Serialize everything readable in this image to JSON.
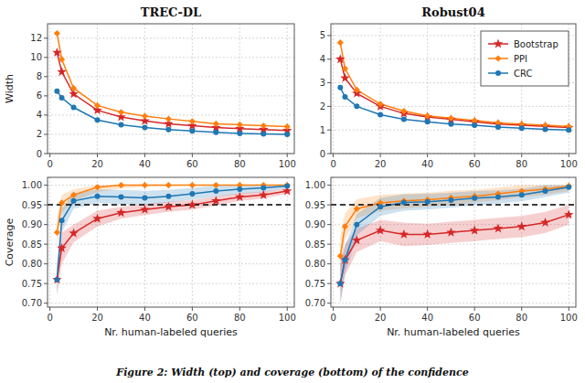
{
  "caption": "Figure 2: Width (top) and coverage (bottom) of the confidence",
  "chart_data": [
    {
      "type": "line",
      "title": "TREC-DL",
      "y_label": "Width",
      "x": [
        3,
        5,
        10,
        20,
        30,
        40,
        50,
        60,
        70,
        80,
        90,
        100
      ],
      "xlim": [
        -1,
        103
      ],
      "xticks": [
        0,
        20,
        40,
        60,
        80,
        100
      ],
      "ylim": [
        0,
        13.5
      ],
      "yticks": [
        0,
        2,
        4,
        6,
        8,
        10,
        12
      ],
      "grid": true,
      "series": [
        {
          "color": "#d62728",
          "marker": "star",
          "values": [
            10.5,
            8.5,
            6.2,
            4.5,
            3.8,
            3.4,
            3.1,
            2.9,
            2.7,
            2.6,
            2.5,
            2.4
          ]
        },
        {
          "color": "#ff7f0e",
          "marker": "diamond",
          "values": [
            12.5,
            9.8,
            6.8,
            5.0,
            4.3,
            3.9,
            3.6,
            3.35,
            3.1,
            3.0,
            2.9,
            2.8
          ]
        },
        {
          "color": "#1f77b4",
          "marker": "circle",
          "values": [
            6.5,
            5.8,
            4.8,
            3.5,
            3.0,
            2.7,
            2.5,
            2.35,
            2.2,
            2.1,
            2.05,
            2.0
          ]
        }
      ]
    },
    {
      "type": "line",
      "title": "Robust04",
      "legend": "upper right",
      "x": [
        3,
        5,
        10,
        20,
        30,
        40,
        50,
        60,
        70,
        80,
        90,
        100
      ],
      "xlim": [
        -1,
        103
      ],
      "xticks": [
        0,
        20,
        40,
        60,
        80,
        100
      ],
      "ylim": [
        0,
        5.5
      ],
      "yticks": [
        0,
        1,
        2,
        3,
        4,
        5
      ],
      "grid": true,
      "series": [
        {
          "name": "Bootstrap",
          "color": "#d62728",
          "marker": "star",
          "values": [
            4.0,
            3.2,
            2.55,
            2.0,
            1.7,
            1.55,
            1.45,
            1.35,
            1.25,
            1.2,
            1.15,
            1.1
          ]
        },
        {
          "name": "PPI",
          "color": "#ff7f0e",
          "marker": "diamond",
          "values": [
            4.7,
            3.6,
            2.7,
            2.1,
            1.8,
            1.6,
            1.5,
            1.4,
            1.3,
            1.25,
            1.2,
            1.15
          ]
        },
        {
          "name": "CRC",
          "color": "#1f77b4",
          "marker": "circle",
          "values": [
            2.8,
            2.4,
            2.0,
            1.65,
            1.45,
            1.35,
            1.25,
            1.2,
            1.12,
            1.07,
            1.03,
            1.0
          ]
        }
      ]
    },
    {
      "type": "line",
      "x_label": "Nr. human-labeled queries",
      "y_label": "Coverage",
      "x": [
        3,
        5,
        10,
        20,
        30,
        40,
        50,
        60,
        70,
        80,
        90,
        100
      ],
      "xlim": [
        -1,
        103
      ],
      "xticks": [
        0,
        20,
        40,
        60,
        80,
        100
      ],
      "ylim": [
        0.69,
        1.02
      ],
      "yticks": [
        {
          "value": 0.7,
          "label": "0.70"
        },
        0.75,
        {
          "value": 0.8,
          "label": "0.80"
        },
        0.85,
        {
          "value": 0.9,
          "label": "0.90"
        },
        0.95,
        {
          "value": 1.0,
          "label": "1.00"
        }
      ],
      "grid": true,
      "reference_y": 0.95,
      "series": [
        {
          "color": "#d62728",
          "marker": "star",
          "values": [
            0.76,
            0.84,
            0.878,
            0.915,
            0.93,
            0.938,
            0.945,
            0.95,
            0.96,
            0.97,
            0.975,
            0.985
          ],
          "lower": [
            0.72,
            0.8,
            0.855,
            0.895,
            0.915,
            0.924,
            0.932,
            0.938,
            0.948,
            0.96,
            0.966,
            0.978
          ],
          "upper": [
            0.8,
            0.88,
            0.9,
            0.935,
            0.945,
            0.952,
            0.958,
            0.962,
            0.972,
            0.98,
            0.984,
            0.992
          ]
        },
        {
          "color": "#ff7f0e",
          "marker": "diamond",
          "values": [
            0.88,
            0.955,
            0.975,
            0.995,
            1.0,
            1.0,
            1.0,
            1.0,
            1.0,
            1.0,
            1.0,
            1.0
          ],
          "lower": [
            0.84,
            0.93,
            0.96,
            0.982,
            0.992,
            0.996,
            0.998,
            0.999,
            1.0,
            1.0,
            1.0,
            1.0
          ],
          "upper": [
            0.92,
            0.975,
            0.99,
            1.0,
            1.0,
            1.0,
            1.0,
            1.0,
            1.0,
            1.0,
            1.0,
            1.0
          ]
        },
        {
          "color": "#1f77b4",
          "marker": "circle",
          "values": [
            0.76,
            0.91,
            0.96,
            0.972,
            0.97,
            0.968,
            0.972,
            0.978,
            0.985,
            0.99,
            0.993,
            0.998
          ],
          "lower": [
            0.72,
            0.88,
            0.94,
            0.955,
            0.952,
            0.95,
            0.956,
            0.963,
            0.971,
            0.978,
            0.982,
            0.992
          ],
          "upper": [
            0.8,
            0.94,
            0.98,
            0.989,
            0.988,
            0.986,
            0.988,
            0.993,
            0.999,
            1.0,
            1.0,
            1.0
          ]
        }
      ]
    },
    {
      "type": "line",
      "x_label": "Nr. human-labeled queries",
      "x": [
        3,
        5,
        10,
        20,
        30,
        40,
        50,
        60,
        70,
        80,
        90,
        100
      ],
      "xlim": [
        -1,
        103
      ],
      "xticks": [
        0,
        20,
        40,
        60,
        80,
        100
      ],
      "ylim": [
        0.69,
        1.02
      ],
      "yticks": [
        {
          "value": 0.7,
          "label": "0.70"
        },
        0.75,
        {
          "value": 0.8,
          "label": "0.80"
        },
        0.85,
        {
          "value": 0.9,
          "label": "0.90"
        },
        0.95,
        {
          "value": 1.0,
          "label": "1.00"
        }
      ],
      "grid": true,
      "reference_y": 0.95,
      "series": [
        {
          "color": "#d62728",
          "marker": "star",
          "values": [
            0.75,
            0.81,
            0.86,
            0.885,
            0.875,
            0.875,
            0.88,
            0.885,
            0.89,
            0.895,
            0.905,
            0.925
          ],
          "lower": [
            0.7,
            0.77,
            0.83,
            0.858,
            0.845,
            0.848,
            0.853,
            0.858,
            0.863,
            0.868,
            0.878,
            0.9
          ],
          "upper": [
            0.8,
            0.85,
            0.89,
            0.912,
            0.905,
            0.902,
            0.907,
            0.912,
            0.917,
            0.922,
            0.932,
            0.95
          ]
        },
        {
          "color": "#ff7f0e",
          "marker": "diamond",
          "values": [
            0.82,
            0.895,
            0.94,
            0.955,
            0.96,
            0.963,
            0.968,
            0.972,
            0.978,
            0.985,
            0.99,
            0.998
          ],
          "lower": [
            0.77,
            0.862,
            0.916,
            0.935,
            0.941,
            0.945,
            0.95,
            0.956,
            0.962,
            0.97,
            0.976,
            0.985
          ],
          "upper": [
            0.87,
            0.928,
            0.964,
            0.975,
            0.979,
            0.981,
            0.986,
            0.988,
            0.994,
            1.0,
            1.0,
            1.0
          ]
        },
        {
          "color": "#1f77b4",
          "marker": "circle",
          "values": [
            0.75,
            0.81,
            0.9,
            0.945,
            0.956,
            0.958,
            0.962,
            0.967,
            0.97,
            0.975,
            0.985,
            0.995
          ],
          "lower": [
            0.7,
            0.775,
            0.873,
            0.922,
            0.935,
            0.938,
            0.943,
            0.949,
            0.953,
            0.959,
            0.97,
            0.981
          ],
          "upper": [
            0.8,
            0.845,
            0.927,
            0.968,
            0.977,
            0.978,
            0.981,
            0.985,
            0.987,
            0.991,
            1.0,
            1.0
          ]
        }
      ]
    }
  ]
}
